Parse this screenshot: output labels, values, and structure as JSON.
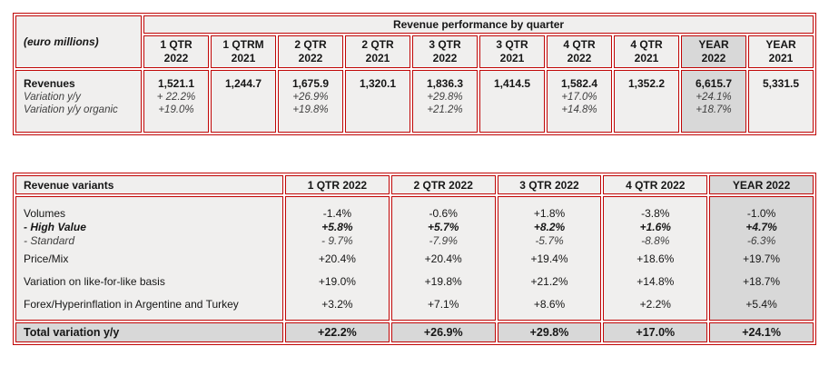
{
  "colors": {
    "border_red": "#c00505",
    "cell_background": "#f0efee",
    "highlight_background": "#d8d8d8",
    "text": "#161616"
  },
  "table1": {
    "unit_label": "(euro millions)",
    "title": "Revenue performance by quarter",
    "row_labels": {
      "revenues": "Revenues",
      "variation_yy": "Variation y/y",
      "variation_organic": "Variation y/y organic"
    },
    "columns": [
      {
        "period": "1 QTR",
        "year": "2022"
      },
      {
        "period": "1 QTRM",
        "year": "2021"
      },
      {
        "period": "2 QTR",
        "year": "2022"
      },
      {
        "period": "2 QTR",
        "year": "2021"
      },
      {
        "period": "3 QTR",
        "year": "2022"
      },
      {
        "period": "3 QTR",
        "year": "2021"
      },
      {
        "period": "4 QTR",
        "year": "2022"
      },
      {
        "period": "4 QTR",
        "year": "2021"
      },
      {
        "period": "YEAR",
        "year": "2022"
      },
      {
        "period": "YEAR",
        "year": "2021"
      }
    ],
    "cells": [
      {
        "revenue": "1,521.1",
        "variation_yy": "+ 22.2%",
        "variation_organic": "+19.0%"
      },
      {
        "revenue": "1,244.7",
        "variation_yy": "",
        "variation_organic": ""
      },
      {
        "revenue": "1,675.9",
        "variation_yy": "+26.9%",
        "variation_organic": "+19.8%"
      },
      {
        "revenue": "1,320.1",
        "variation_yy": "",
        "variation_organic": ""
      },
      {
        "revenue": "1,836.3",
        "variation_yy": "+29.8%",
        "variation_organic": "+21.2%"
      },
      {
        "revenue": "1,414.5",
        "variation_yy": "",
        "variation_organic": ""
      },
      {
        "revenue": "1,582.4",
        "variation_yy": "+17.0%",
        "variation_organic": "+14.8%"
      },
      {
        "revenue": "1,352.2",
        "variation_yy": "",
        "variation_organic": ""
      },
      {
        "revenue": "6,615.7",
        "variation_yy": "+24.1%",
        "variation_organic": "+18.7%"
      },
      {
        "revenue": "5,331.5",
        "variation_yy": "",
        "variation_organic": ""
      }
    ]
  },
  "table2": {
    "header": [
      "Revenue variants",
      "1 QTR 2022",
      "2 QTR 2022",
      "3 QTR 2022",
      "4 QTR 2022",
      "YEAR 2022"
    ],
    "rows": [
      {
        "label": "Volumes",
        "values": [
          "-1.4%",
          "-0.6%",
          "+1.8%",
          "-3.8%",
          "-1.0%"
        ]
      },
      {
        "label": "- High Value",
        "values": [
          "+5.8%",
          "+5.7%",
          "+8.2%",
          "+1.6%",
          "+4.7%"
        ]
      },
      {
        "label": "- Standard",
        "values": [
          "- 9.7%",
          "-7.9%",
          "-5.7%",
          "-8.8%",
          "-6.3%"
        ]
      },
      {
        "label": "Price/Mix",
        "values": [
          "+20.4%",
          "+20.4%",
          "+19.4%",
          "+18.6%",
          "+19.7%"
        ]
      },
      {
        "label": "Variation on like-for-like basis",
        "values": [
          "+19.0%",
          "+19.8%",
          "+21.2%",
          "+14.8%",
          "+18.7%"
        ]
      },
      {
        "label": "Forex/Hyperinflation in Argentine and Turkey",
        "values": [
          "+3.2%",
          "+7.1%",
          "+8.6%",
          "+2.2%",
          "+5.4%"
        ]
      }
    ],
    "total": {
      "label": "Total variation y/y",
      "values": [
        "+22.2%",
        "+26.9%",
        "+29.8%",
        "+17.0%",
        "+24.1%"
      ]
    }
  }
}
